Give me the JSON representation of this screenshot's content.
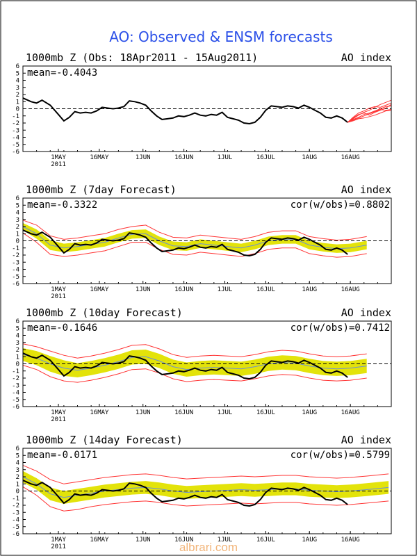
{
  "title": "AO: Observed & ENSM forecasts",
  "watermark": "albrari.com",
  "colors": {
    "title": "#2b50e8",
    "observed": "#000000",
    "ensemble": "#ff3333",
    "spread": "#e3e30a",
    "mean": "#6b8fd6",
    "zero_line": "#000000"
  },
  "chart_data": [
    {
      "type": "line",
      "title": "1000mb Z (Obs: 18Apr2011 - 15Aug2011)",
      "right_label": "AO index",
      "mean_label": "mean=-0.4043",
      "cor_label": "",
      "ylim": [
        -6,
        6
      ],
      "yticks": [
        6,
        5,
        4,
        3,
        2,
        1,
        0,
        -1,
        -2,
        -3,
        -4,
        -5,
        -6
      ],
      "xlim": [
        0,
        135
      ],
      "xticks": [
        {
          "x": 13,
          "label": "1MAY",
          "sub": "2011"
        },
        {
          "x": 28,
          "label": "16MAY",
          "sub": ""
        },
        {
          "x": 44,
          "label": "1JUN",
          "sub": ""
        },
        {
          "x": 59,
          "label": "16JUN",
          "sub": ""
        },
        {
          "x": 74,
          "label": "1JUL",
          "sub": ""
        },
        {
          "x": 89,
          "label": "16JUL",
          "sub": ""
        },
        {
          "x": 105,
          "label": "1AUG",
          "sub": ""
        },
        {
          "x": 120,
          "label": "16AUG",
          "sub": ""
        }
      ],
      "series": [
        {
          "role": "observed",
          "x": [
            0,
            3,
            5,
            7,
            10,
            13,
            15,
            17,
            19,
            21,
            23,
            25,
            27,
            29,
            31,
            33,
            35,
            37,
            39,
            41,
            43,
            45,
            47,
            49,
            51,
            53,
            55,
            57,
            59,
            61,
            63,
            65,
            67,
            69,
            71,
            73,
            75,
            77,
            79,
            81,
            83,
            85,
            87,
            89,
            91,
            93,
            95,
            97,
            99,
            101,
            103,
            105,
            107,
            109,
            111,
            113,
            115,
            117,
            119
          ],
          "y": [
            1.5,
            1.0,
            0.8,
            1.2,
            0.5,
            -0.8,
            -1.7,
            -1.2,
            -0.4,
            -0.6,
            -0.5,
            -0.6,
            -0.3,
            0.2,
            0.1,
            0.0,
            0.1,
            0.3,
            1.1,
            1.0,
            0.8,
            0.5,
            -0.3,
            -1.0,
            -1.5,
            -1.4,
            -1.3,
            -1.0,
            -1.1,
            -0.9,
            -0.6,
            -0.9,
            -1.0,
            -0.8,
            -0.9,
            -0.5,
            -1.2,
            -1.4,
            -1.6,
            -2.0,
            -2.1,
            -1.9,
            -1.2,
            -0.2,
            0.4,
            0.3,
            0.2,
            0.4,
            0.3,
            0.1,
            0.5,
            0.2,
            -0.2,
            -0.6,
            -1.2,
            -1.3,
            -1.0,
            -1.3,
            -1.9
          ]
        },
        {
          "role": "ensemble_members",
          "start": 119,
          "members": [
            [
              -1.9,
              -1.4,
              -0.9,
              -0.5,
              -0.2,
              0.2,
              0.6,
              0.9,
              1.2
            ],
            [
              -1.9,
              -1.5,
              -1.2,
              -0.8,
              -0.6,
              -0.3,
              0.0,
              0.3,
              0.4
            ],
            [
              -1.9,
              -1.6,
              -1.3,
              -1.0,
              -0.7,
              -0.4,
              -0.1,
              -0.2,
              -0.1
            ],
            [
              -1.9,
              -1.3,
              -0.8,
              -0.6,
              -0.9,
              -0.5,
              -0.2,
              0.1,
              0.6
            ],
            [
              -1.9,
              -1.7,
              -1.4,
              -1.3,
              -1.1,
              -0.9,
              -0.6,
              -0.3,
              -0.2
            ],
            [
              -1.9,
              -1.2,
              -0.6,
              -0.3,
              0.1,
              0.3,
              0.2,
              0.5,
              0.8
            ]
          ]
        }
      ]
    },
    {
      "type": "line",
      "title": "1000mb Z (7day Forecast)",
      "right_label": "AO index",
      "mean_label": "mean=-0.3322",
      "cor_label": "cor(w/obs)=0.8802",
      "ylim": [
        -6,
        6
      ],
      "yticks": [
        6,
        5,
        4,
        3,
        2,
        1,
        0,
        -1,
        -2,
        -3,
        -4,
        -5,
        -6
      ],
      "xlim": [
        0,
        135
      ],
      "xticks": [
        {
          "x": 13,
          "label": "1MAY",
          "sub": "2011"
        },
        {
          "x": 28,
          "label": "16MAY",
          "sub": ""
        },
        {
          "x": 44,
          "label": "1JUN",
          "sub": ""
        },
        {
          "x": 59,
          "label": "16JUN",
          "sub": ""
        },
        {
          "x": 74,
          "label": "1JUL",
          "sub": ""
        },
        {
          "x": 89,
          "label": "16JUL",
          "sub": ""
        },
        {
          "x": 105,
          "label": "1AUG",
          "sub": ""
        },
        {
          "x": 120,
          "label": "16AUG",
          "sub": ""
        }
      ],
      "forecast": {
        "x": [
          0,
          5,
          10,
          15,
          20,
          25,
          30,
          35,
          40,
          45,
          50,
          55,
          60,
          65,
          70,
          75,
          80,
          85,
          90,
          95,
          100,
          105,
          110,
          115,
          120,
          126
        ],
        "mean": [
          2.0,
          1.0,
          -0.6,
          -1.0,
          -0.8,
          -0.5,
          -0.2,
          0.4,
          0.9,
          1.0,
          0.0,
          -0.7,
          -0.8,
          -0.4,
          -0.6,
          -0.8,
          -1.0,
          -0.6,
          0.0,
          0.2,
          0.2,
          -0.6,
          -0.9,
          -1.1,
          -1.0,
          -0.6
        ],
        "spread_low": [
          1.5,
          0.3,
          -1.3,
          -1.6,
          -1.4,
          -1.1,
          -0.8,
          -0.2,
          0.3,
          0.4,
          -0.6,
          -1.3,
          -1.4,
          -1.0,
          -1.2,
          -1.4,
          -1.6,
          -1.2,
          -0.6,
          -0.4,
          -0.4,
          -1.2,
          -1.5,
          -1.7,
          -1.6,
          -1.2
        ],
        "spread_high": [
          2.5,
          1.6,
          0.1,
          -0.4,
          -0.2,
          0.1,
          0.4,
          1.0,
          1.5,
          1.6,
          0.6,
          -0.1,
          -0.2,
          0.2,
          0.0,
          -0.2,
          -0.4,
          0.0,
          0.6,
          0.8,
          0.8,
          0.0,
          -0.3,
          -0.5,
          -0.4,
          0.0
        ],
        "env_low": [
          1.1,
          -0.2,
          -1.9,
          -2.2,
          -2.0,
          -1.7,
          -1.4,
          -0.8,
          -0.2,
          -0.2,
          -1.2,
          -1.9,
          -2.0,
          -1.6,
          -1.8,
          -2.0,
          -2.2,
          -1.8,
          -1.2,
          -1.0,
          -1.0,
          -1.8,
          -2.1,
          -2.3,
          -2.2,
          -1.8
        ],
        "env_high": [
          2.9,
          2.2,
          0.7,
          0.2,
          0.4,
          0.7,
          1.0,
          1.6,
          2.0,
          2.2,
          1.2,
          0.5,
          0.4,
          0.8,
          0.6,
          0.4,
          0.2,
          0.6,
          1.2,
          1.4,
          1.4,
          0.6,
          0.3,
          0.1,
          0.2,
          0.6
        ]
      },
      "series": [
        {
          "role": "observed",
          "ref": "obs_panel_0"
        }
      ]
    },
    {
      "type": "line",
      "title": "1000mb Z (10day Forecast)",
      "right_label": "AO index",
      "mean_label": "mean=-0.1646",
      "cor_label": "cor(w/obs)=0.7412",
      "ylim": [
        -6,
        6
      ],
      "yticks": [
        6,
        5,
        4,
        3,
        2,
        1,
        0,
        -1,
        -2,
        -3,
        -4,
        -5,
        -6
      ],
      "xlim": [
        0,
        135
      ],
      "xticks": [
        {
          "x": 13,
          "label": "1MAY",
          "sub": "2011"
        },
        {
          "x": 28,
          "label": "16MAY",
          "sub": ""
        },
        {
          "x": 44,
          "label": "1JUN",
          "sub": ""
        },
        {
          "x": 59,
          "label": "16JUN",
          "sub": ""
        },
        {
          "x": 74,
          "label": "1JUL",
          "sub": ""
        },
        {
          "x": 89,
          "label": "16JUL",
          "sub": ""
        },
        {
          "x": 105,
          "label": "1AUG",
          "sub": ""
        },
        {
          "x": 120,
          "label": "16AUG",
          "sub": ""
        }
      ],
      "forecast": {
        "x": [
          0,
          5,
          10,
          15,
          20,
          25,
          30,
          35,
          40,
          45,
          50,
          55,
          60,
          65,
          70,
          75,
          80,
          85,
          90,
          95,
          100,
          105,
          110,
          115,
          120,
          126
        ],
        "mean": [
          1.3,
          0.8,
          0.0,
          -0.6,
          -0.9,
          -0.6,
          -0.2,
          0.3,
          0.9,
          1.0,
          0.4,
          -0.4,
          -0.8,
          -0.6,
          -0.5,
          -0.6,
          -0.7,
          -0.4,
          0.0,
          0.2,
          0.1,
          -0.3,
          -0.6,
          -0.7,
          -0.6,
          -0.3
        ],
        "spread_low": [
          0.4,
          -0.2,
          -1.1,
          -1.7,
          -1.9,
          -1.6,
          -1.2,
          -0.7,
          -0.1,
          0.0,
          -0.6,
          -1.4,
          -1.8,
          -1.6,
          -1.5,
          -1.6,
          -1.7,
          -1.4,
          -1.0,
          -0.8,
          -0.9,
          -1.3,
          -1.6,
          -1.7,
          -1.6,
          -1.3
        ],
        "spread_high": [
          2.2,
          1.8,
          1.1,
          0.5,
          0.1,
          0.4,
          0.8,
          1.3,
          1.9,
          2.0,
          1.4,
          0.6,
          0.2,
          0.4,
          0.5,
          0.4,
          0.3,
          0.6,
          1.0,
          1.2,
          1.1,
          0.7,
          0.4,
          0.3,
          0.4,
          0.7
        ],
        "env_low": [
          -0.2,
          -0.8,
          -1.8,
          -2.4,
          -2.6,
          -2.3,
          -1.9,
          -1.4,
          -0.8,
          -0.7,
          -1.3,
          -2.1,
          -2.5,
          -2.3,
          -2.2,
          -2.3,
          -2.4,
          -2.1,
          -1.7,
          -1.5,
          -1.6,
          -2.0,
          -2.3,
          -2.4,
          -2.3,
          -2.0
        ],
        "env_high": [
          2.8,
          2.4,
          1.8,
          1.2,
          0.8,
          1.1,
          1.5,
          2.0,
          2.6,
          2.7,
          2.1,
          1.3,
          0.9,
          1.1,
          1.2,
          1.1,
          1.0,
          1.3,
          1.7,
          1.9,
          1.8,
          1.4,
          1.1,
          1.0,
          1.1,
          1.4
        ]
      },
      "series": [
        {
          "role": "observed",
          "ref": "obs_panel_0"
        }
      ]
    },
    {
      "type": "line",
      "title": "1000mb Z (14day Forecast)",
      "right_label": "AO index",
      "mean_label": "mean=-0.0171",
      "cor_label": "cor(w/obs)=0.5799",
      "ylim": [
        -6,
        6
      ],
      "yticks": [
        6,
        5,
        4,
        3,
        2,
        1,
        0,
        -1,
        -2,
        -3,
        -4,
        -5,
        -6
      ],
      "xlim": [
        0,
        135
      ],
      "xticks": [
        {
          "x": 13,
          "label": "1MAY",
          "sub": "2011"
        },
        {
          "x": 28,
          "label": "16MAY",
          "sub": ""
        },
        {
          "x": 44,
          "label": "1JUN",
          "sub": ""
        },
        {
          "x": 59,
          "label": "16JUN",
          "sub": ""
        },
        {
          "x": 74,
          "label": "1JUL",
          "sub": ""
        },
        {
          "x": 89,
          "label": "16JUL",
          "sub": ""
        },
        {
          "x": 105,
          "label": "1AUG",
          "sub": ""
        },
        {
          "x": 120,
          "label": "16AUG",
          "sub": ""
        }
      ],
      "forecast": {
        "x": [
          0,
          5,
          10,
          15,
          20,
          25,
          30,
          35,
          40,
          45,
          50,
          55,
          60,
          65,
          70,
          75,
          80,
          85,
          90,
          95,
          100,
          105,
          110,
          115,
          120,
          126,
          134
        ],
        "mean": [
          2.0,
          1.0,
          -0.4,
          -0.9,
          -0.6,
          -0.3,
          0.0,
          0.2,
          0.4,
          0.5,
          0.3,
          0.0,
          -0.2,
          -0.1,
          0.0,
          0.1,
          0.2,
          0.1,
          0.2,
          0.3,
          0.3,
          0.1,
          0.0,
          -0.1,
          0.0,
          0.2,
          0.5
        ],
        "spread_low": [
          1.2,
          0.2,
          -1.3,
          -1.8,
          -1.5,
          -1.2,
          -0.9,
          -0.7,
          -0.5,
          -0.4,
          -0.6,
          -0.9,
          -1.1,
          -1.0,
          -0.9,
          -0.8,
          -0.7,
          -0.8,
          -0.7,
          -0.6,
          -0.6,
          -0.8,
          -0.9,
          -1.0,
          -0.9,
          -0.7,
          -0.4
        ],
        "spread_high": [
          2.8,
          1.8,
          0.5,
          0.0,
          0.3,
          0.6,
          0.9,
          1.1,
          1.3,
          1.4,
          1.2,
          0.9,
          0.7,
          0.8,
          0.9,
          1.0,
          1.1,
          1.0,
          1.1,
          1.2,
          1.2,
          1.0,
          0.9,
          0.8,
          0.9,
          1.1,
          1.4
        ],
        "env_low": [
          0.6,
          -0.6,
          -2.2,
          -2.8,
          -2.6,
          -2.2,
          -1.9,
          -1.7,
          -1.5,
          -1.4,
          -1.6,
          -1.9,
          -2.1,
          -2.0,
          -1.9,
          -1.8,
          -1.7,
          -1.8,
          -1.7,
          -1.6,
          -1.6,
          -1.8,
          -1.9,
          -2.0,
          -1.9,
          -1.7,
          -1.4
        ],
        "env_high": [
          3.6,
          2.8,
          1.6,
          1.0,
          1.3,
          1.6,
          1.9,
          2.1,
          2.3,
          2.4,
          2.2,
          1.9,
          1.7,
          1.8,
          1.9,
          2.0,
          2.1,
          2.0,
          2.1,
          2.2,
          2.2,
          2.0,
          1.9,
          1.8,
          1.9,
          2.1,
          2.4
        ]
      },
      "series": [
        {
          "role": "observed",
          "ref": "obs_panel_0"
        }
      ]
    }
  ]
}
